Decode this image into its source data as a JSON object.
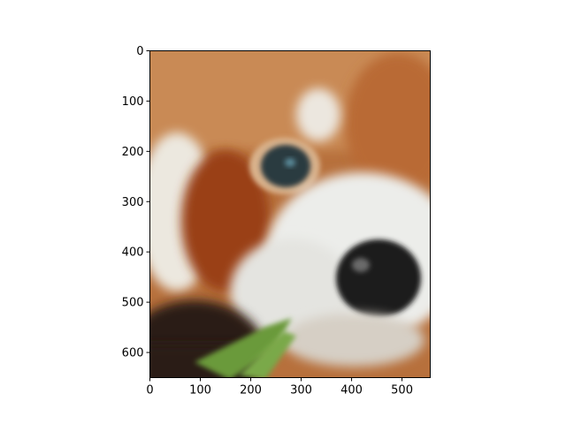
{
  "chart_data": {
    "type": "image",
    "title": "",
    "xlabel": "",
    "ylabel": "",
    "image_extent": {
      "x": [
        0,
        556
      ],
      "y": [
        0,
        650
      ]
    },
    "y_inverted": true,
    "grid": false,
    "legend": "none",
    "x_ticks": [
      0,
      100,
      200,
      300,
      400,
      500
    ],
    "y_ticks": [
      0,
      100,
      200,
      300,
      400,
      500,
      600
    ],
    "x_tick_labels": [
      "0",
      "100",
      "200",
      "300",
      "400",
      "500"
    ],
    "y_tick_labels": [
      "0",
      "100",
      "200",
      "300",
      "400",
      "500",
      "600"
    ],
    "image_content": "blurred close-up of a red panda face with a green leaf",
    "colors": {
      "fur_top": "#c98a55",
      "fur_red": "#9a3f16",
      "fur_white": "#e8e6e0",
      "nose": "#1a1a1a",
      "eye": "#2c3a3f",
      "leaf": "#6a9a3a",
      "dark": "#2a1a12"
    }
  }
}
